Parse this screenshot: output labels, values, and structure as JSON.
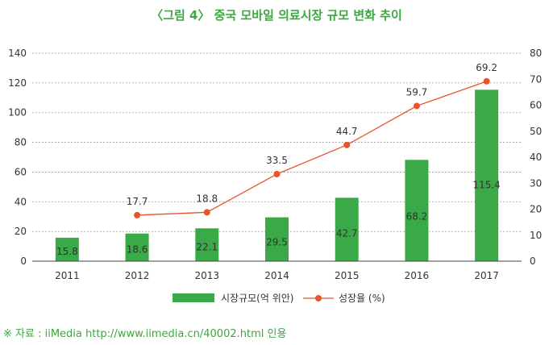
{
  "title": "〈그림 4〉 중국 모바일 의료시장 규모 변화 추이",
  "source": "※ 자료 : iiMedia http://www.iimedia.cn/40002.html 인용",
  "colors": {
    "bar": "#3aaa48",
    "line": "#e8542a",
    "title": "#3aa93e",
    "grid": "#999999"
  },
  "chart_data": {
    "type": "bar",
    "title": "〈그림 4〉 중국 모바일 의료시장 규모 변화 추이",
    "categories": [
      "2011",
      "2012",
      "2013",
      "2014",
      "2015",
      "2016",
      "2017"
    ],
    "series": [
      {
        "name": "시장규모(억 위안)",
        "type": "bar",
        "axis": "left",
        "values": [
          15.8,
          18.6,
          22.1,
          29.5,
          42.7,
          68.2,
          115.4
        ],
        "labels": [
          "15.8",
          "18.6",
          "22.1",
          "29.5",
          "42.7",
          "68.2",
          "115.4"
        ]
      },
      {
        "name": "성장율 (%)",
        "type": "line",
        "axis": "right",
        "values": [
          null,
          17.7,
          18.8,
          33.5,
          44.7,
          59.7,
          69.2
        ],
        "labels": [
          "",
          "17.7",
          "18.8",
          "33.5",
          "44.7",
          "59.7",
          "69.2"
        ]
      }
    ],
    "y_left": {
      "ylim": [
        0,
        140
      ],
      "ticks": [
        "0",
        "20",
        "40",
        "60",
        "80",
        "100",
        "120",
        "140"
      ]
    },
    "y_right": {
      "ylim": [
        0,
        80
      ],
      "ticks": [
        "0",
        "10",
        "20",
        "30",
        "40",
        "50",
        "60",
        "70",
        "80"
      ]
    },
    "grid": true,
    "legend": "bottom"
  }
}
